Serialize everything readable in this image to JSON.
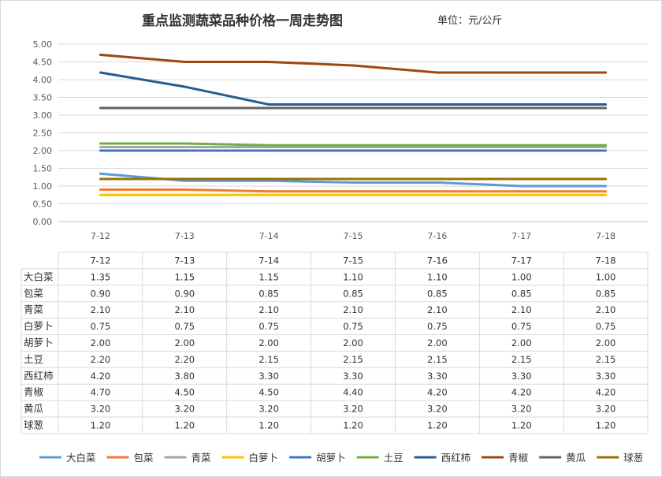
{
  "title": "重点监测蔬菜品种价格一周走势图",
  "unit": "单位：元/公斤",
  "chart_data": {
    "type": "line",
    "title": "重点监测蔬菜品种价格一周走势图",
    "categories": [
      "7-12",
      "7-13",
      "7-14",
      "7-15",
      "7-16",
      "7-17",
      "7-18"
    ],
    "ylim": [
      0,
      5
    ],
    "yticks": [
      "0.00",
      "0.50",
      "1.00",
      "1.50",
      "2.00",
      "2.50",
      "3.00",
      "3.50",
      "4.00",
      "4.50",
      "5.00"
    ],
    "grid": true,
    "legend": "bottom",
    "series": [
      {
        "name": "大白菜",
        "color": "#5b9bd5",
        "values": [
          1.35,
          1.15,
          1.15,
          1.1,
          1.1,
          1.0,
          1.0
        ],
        "labels": [
          "1.35",
          "1.15",
          "1.15",
          "1.10",
          "1.10",
          "1.00",
          "1.00"
        ]
      },
      {
        "name": "包菜",
        "color": "#ed7d31",
        "values": [
          0.9,
          0.9,
          0.85,
          0.85,
          0.85,
          0.85,
          0.85
        ],
        "labels": [
          "0.90",
          "0.90",
          "0.85",
          "0.85",
          "0.85",
          "0.85",
          "0.85"
        ]
      },
      {
        "name": "青菜",
        "color": "#a5a5a5",
        "values": [
          2.1,
          2.1,
          2.1,
          2.1,
          2.1,
          2.1,
          2.1
        ],
        "labels": [
          "2.10",
          "2.10",
          "2.10",
          "2.10",
          "2.10",
          "2.10",
          "2.10"
        ]
      },
      {
        "name": "白萝卜",
        "color": "#ffc000",
        "values": [
          0.75,
          0.75,
          0.75,
          0.75,
          0.75,
          0.75,
          0.75
        ],
        "labels": [
          "0.75",
          "0.75",
          "0.75",
          "0.75",
          "0.75",
          "0.75",
          "0.75"
        ]
      },
      {
        "name": "胡萝卜",
        "color": "#4472c4",
        "values": [
          2.0,
          2.0,
          2.0,
          2.0,
          2.0,
          2.0,
          2.0
        ],
        "labels": [
          "2.00",
          "2.00",
          "2.00",
          "2.00",
          "2.00",
          "2.00",
          "2.00"
        ]
      },
      {
        "name": "土豆",
        "color": "#70ad47",
        "values": [
          2.2,
          2.2,
          2.15,
          2.15,
          2.15,
          2.15,
          2.15
        ],
        "labels": [
          "2.20",
          "2.20",
          "2.15",
          "2.15",
          "2.15",
          "2.15",
          "2.15"
        ]
      },
      {
        "name": "西红柿",
        "color": "#255e91",
        "values": [
          4.2,
          3.8,
          3.3,
          3.3,
          3.3,
          3.3,
          3.3
        ],
        "labels": [
          "4.20",
          "3.80",
          "3.30",
          "3.30",
          "3.30",
          "3.30",
          "3.30"
        ]
      },
      {
        "name": "青椒",
        "color": "#9e480e",
        "values": [
          4.7,
          4.5,
          4.5,
          4.4,
          4.2,
          4.2,
          4.2
        ],
        "labels": [
          "4.70",
          "4.50",
          "4.50",
          "4.40",
          "4.20",
          "4.20",
          "4.20"
        ]
      },
      {
        "name": "黄瓜",
        "color": "#636363",
        "values": [
          3.2,
          3.2,
          3.2,
          3.2,
          3.2,
          3.2,
          3.2
        ],
        "labels": [
          "3.20",
          "3.20",
          "3.20",
          "3.20",
          "3.20",
          "3.20",
          "3.20"
        ]
      },
      {
        "name": "球葱",
        "color": "#997300",
        "values": [
          1.2,
          1.2,
          1.2,
          1.2,
          1.2,
          1.2,
          1.2
        ],
        "labels": [
          "1.20",
          "1.20",
          "1.20",
          "1.20",
          "1.20",
          "1.20",
          "1.20"
        ]
      }
    ]
  }
}
